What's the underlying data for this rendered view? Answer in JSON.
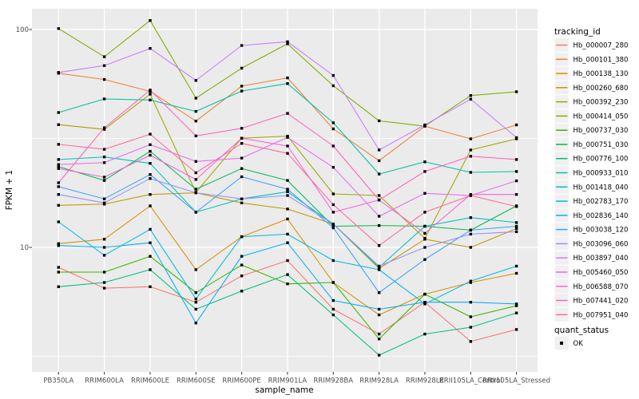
{
  "figure": {
    "y_axis_title": "FPKM + 1",
    "x_axis_title": "sample_name",
    "y_tick_labels": [
      "100",
      "10"
    ],
    "panel_bg": "#EBEBEB",
    "grid_color": "#FFFFFF",
    "tick_text_color": "#4D4D4D",
    "legend": {
      "tracking_title": "tracking_id",
      "quant_title": "quant_status",
      "quant_ok_label": "OK",
      "key_bg": "#F0F0F0",
      "quant_marker": "black-square"
    }
  },
  "chart_data": {
    "type": "line",
    "x_type": "categorical",
    "y_scale": "log10",
    "title": "",
    "xlabel": "sample_name",
    "ylabel": "FPKM + 1",
    "y_ticks": [
      10,
      100
    ],
    "y_minor_gridlines": [
      3.1623,
      31.623
    ],
    "ylim": [
      2.7,
      125
    ],
    "grid": true,
    "legend_position": "right",
    "marker": "small black square (quant_status = OK) at every point",
    "categories": [
      "PB350LA",
      "RRIM600LA",
      "RRIM600LE",
      "RRIM600SE",
      "RRIM600PE",
      "RRIM901LA",
      "RRIM928BA",
      "RRIM928LA",
      "RRIM928LE",
      "RRII105LA_Control",
      "RRII105LA_Stressed"
    ],
    "series": [
      {
        "name": "Hb_000007_280",
        "color": "#F8766D",
        "values": [
          8.1,
          6.5,
          6.6,
          5.6,
          7.4,
          8.7,
          5.2,
          4.0,
          5.6,
          3.7,
          4.2
        ]
      },
      {
        "name": "Hb_000101_380",
        "color": "#EB8335",
        "values": [
          63,
          59,
          52,
          38,
          55,
          60,
          35,
          25,
          36,
          31.5,
          36.5
        ]
      },
      {
        "name": "Hb_000138_130",
        "color": "#D89000",
        "values": [
          10.4,
          10.9,
          15.5,
          7.9,
          11.2,
          13.5,
          6.9,
          4.9,
          6.1,
          6.9,
          7.6
        ]
      },
      {
        "name": "Hb_000260_680",
        "color": "#C09B00",
        "values": [
          15.6,
          15.8,
          17.5,
          17.8,
          16.0,
          15.0,
          12.8,
          8.0,
          10.9,
          10.0,
          12.2
        ]
      },
      {
        "name": "Hb_000392_230",
        "color": "#A3A500",
        "values": [
          36.6,
          34.8,
          50.5,
          17.9,
          31.7,
          32.4,
          17.6,
          17.3,
          11.0,
          28.0,
          31.5
        ]
      },
      {
        "name": "Hb_000414_050",
        "color": "#7CAE00",
        "values": [
          101,
          75,
          110,
          48.4,
          66.5,
          86,
          55.2,
          38.1,
          36.0,
          49.8,
          51.8
        ]
      },
      {
        "name": "Hb_000737_030",
        "color": "#39B600",
        "values": [
          7.7,
          7.7,
          9.1,
          6.2,
          8.3,
          6.8,
          6.9,
          3.8,
          6.1,
          4.8,
          5.4
        ]
      },
      {
        "name": "Hb_000751_030",
        "color": "#00BB4E",
        "values": [
          23.5,
          20.3,
          27.6,
          18.5,
          23.0,
          20.3,
          12.5,
          12.6,
          12.5,
          12.0,
          15.5
        ]
      },
      {
        "name": "Hb_000776_100",
        "color": "#00BF7D",
        "values": [
          6.6,
          6.9,
          7.9,
          5.2,
          6.3,
          7.5,
          4.9,
          3.2,
          4.0,
          4.3,
          5.0
        ]
      },
      {
        "name": "Hb_000933_010",
        "color": "#00C1A3",
        "values": [
          41.6,
          48.0,
          47.5,
          42.1,
          52.2,
          56.5,
          37.3,
          21.7,
          24.7,
          22.1,
          22.3
        ]
      },
      {
        "name": "Hb_001418_040",
        "color": "#00BFC4",
        "values": [
          25.3,
          26.0,
          24.3,
          14.5,
          16.7,
          18.0,
          12.8,
          8.1,
          12.5,
          13.7,
          13.0
        ]
      },
      {
        "name": "Hb_002783_170",
        "color": "#00BAE0",
        "values": [
          13.1,
          9.2,
          12.1,
          5.8,
          11.2,
          11.5,
          8.7,
          7.9,
          5.5,
          7.0,
          8.2
        ]
      },
      {
        "name": "Hb_002836_140",
        "color": "#00B0F6",
        "values": [
          10.2,
          10.0,
          10.5,
          4.5,
          9.1,
          10.5,
          5.7,
          5.2,
          5.6,
          5.6,
          5.5
        ]
      },
      {
        "name": "Hb_003038_120",
        "color": "#35A2FF",
        "values": [
          19.0,
          16.7,
          21.6,
          14.5,
          21.1,
          18.5,
          12.3,
          6.2,
          8.8,
          12.0,
          12.5
        ]
      },
      {
        "name": "Hb_003096_060",
        "color": "#9590FF",
        "values": [
          17.5,
          16.0,
          20.7,
          17.8,
          16.7,
          17.3,
          12.8,
          8.2,
          10.0,
          11.5,
          11.8
        ]
      },
      {
        "name": "Hb_003897_040",
        "color": "#C77CFF",
        "values": [
          63.5,
          68.3,
          81.9,
          58.4,
          84.5,
          87.9,
          61.5,
          28.0,
          36.5,
          47.9,
          31.9
        ]
      },
      {
        "name": "Hb_005460_050",
        "color": "#E76BF3",
        "values": [
          24.0,
          24.5,
          29.6,
          24.8,
          25.7,
          32.0,
          23.3,
          13.9,
          17.7,
          17.3,
          20.2
        ]
      },
      {
        "name": "Hb_006588_070",
        "color": "#FA62DB",
        "values": [
          23.0,
          21.0,
          26.5,
          20.5,
          31.7,
          29.2,
          14.5,
          16.5,
          11.6,
          17.5,
          17.5
        ]
      },
      {
        "name": "Hb_007441_020",
        "color": "#FF62BC",
        "values": [
          19.8,
          35.4,
          52.7,
          32.5,
          35.2,
          41.2,
          29.2,
          16.5,
          22.3,
          26.2,
          25.3
        ]
      },
      {
        "name": "Hb_007951_040",
        "color": "#FF6A98",
        "values": [
          29.7,
          28.2,
          33.1,
          22.0,
          30.0,
          27.0,
          15.7,
          10.2,
          14.5,
          17.3,
          15.4
        ]
      }
    ]
  }
}
